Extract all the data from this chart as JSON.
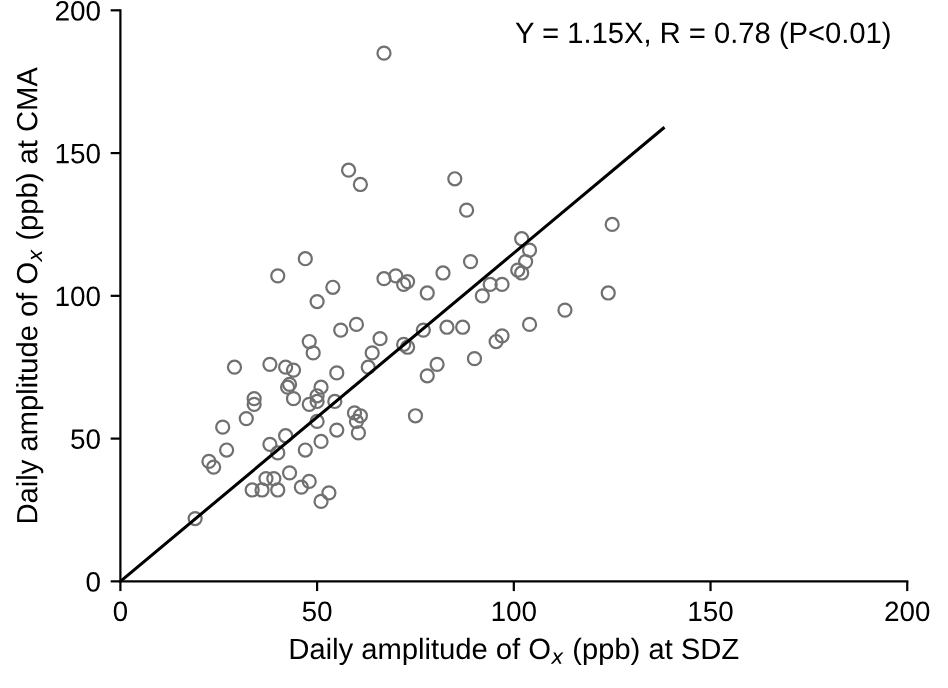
{
  "chart_data": {
    "type": "scatter",
    "xlabel": "Daily amplitude of O$_{x}$ (ppb) at SDZ",
    "ylabel": "Daily amplitude of O$_{x}$ (ppb) at CMA",
    "annotations": [
      "Y = 1.15X, R = 0.78 (P<0.01)"
    ],
    "xlim": [
      0,
      200
    ],
    "ylim": [
      0,
      200
    ],
    "xticks": [
      0,
      50,
      100,
      150,
      200
    ],
    "yticks": [
      0,
      50,
      100,
      150,
      200
    ],
    "grid": false,
    "legend": false,
    "marker": "circle",
    "series": [
      {
        "color": "#707070",
        "x": [
          67,
          58,
          61,
          85,
          88,
          102,
          104,
          103,
          89,
          101,
          102,
          97,
          94,
          92,
          82,
          78,
          67,
          70,
          72,
          73,
          54,
          50,
          47,
          40,
          29,
          38,
          42,
          44,
          48,
          49,
          56,
          60,
          66,
          64,
          63,
          72,
          73,
          77,
          83,
          87,
          95.5,
          97,
          104,
          90,
          80.5,
          78,
          55,
          51,
          48,
          50,
          50,
          54.5,
          44,
          43,
          42.5,
          34,
          34,
          32,
          26,
          27,
          22.5,
          23.7,
          38,
          40,
          42,
          47,
          50,
          51,
          55,
          59.5,
          61,
          60,
          60.5,
          75,
          19,
          33.5,
          36,
          37,
          39,
          40,
          43,
          46,
          48,
          51,
          53,
          125,
          124,
          113
        ],
        "values": [
          185,
          144,
          139,
          141,
          130,
          120,
          116,
          112,
          112,
          109,
          108,
          104,
          104,
          100,
          108,
          101,
          106,
          107,
          104,
          105,
          103,
          98,
          113,
          107,
          75,
          76,
          75,
          74,
          84,
          80,
          88,
          90,
          85,
          80,
          75,
          83,
          82,
          88,
          89,
          89,
          84,
          86,
          90,
          78,
          76,
          72,
          73,
          68,
          62,
          63,
          65,
          63,
          64,
          69,
          68,
          64,
          62,
          57,
          54,
          46,
          42,
          40,
          48,
          45,
          51,
          46,
          56,
          49,
          53,
          59,
          58,
          56,
          52,
          58,
          22,
          32,
          32,
          36,
          36,
          32,
          38,
          33,
          35,
          28,
          31,
          125,
          101,
          95
        ]
      },
      {
        "type": "line",
        "color": "#000000",
        "x": [
          0,
          138
        ],
        "values": [
          0,
          158.7
        ],
        "marker": "none",
        "line_style": "solid"
      }
    ]
  }
}
